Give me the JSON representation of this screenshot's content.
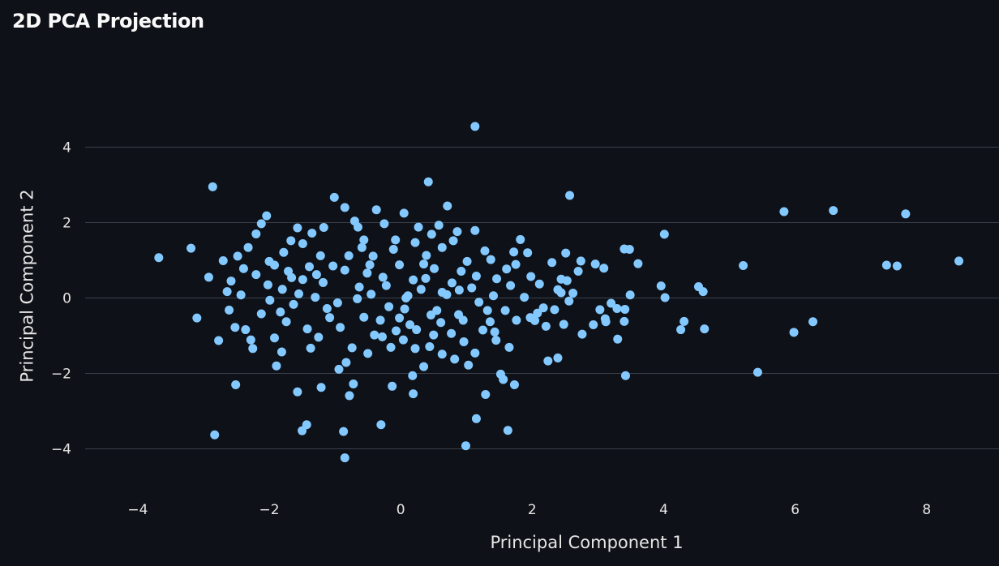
{
  "chart_data": {
    "type": "scatter",
    "title": "2D PCA Projection",
    "xlabel": "Principal Component 1",
    "ylabel": "Principal Component 2",
    "xlim": [
      -4.8,
      9.1
    ],
    "ylim": [
      -5.0,
      5.0
    ],
    "xticks": [
      -4,
      -2,
      0,
      2,
      4,
      6,
      8
    ],
    "yticks": [
      -4,
      -2,
      0,
      2,
      4
    ],
    "xtick_labels": [
      "−4",
      "−2",
      "0",
      "2",
      "4",
      "6",
      "8"
    ],
    "ytick_labels": [
      "−4",
      "−2",
      "0",
      "2",
      "4"
    ],
    "grid": "horizontal",
    "marker_color": "#83c9ff",
    "points": [
      [
        1.13,
        4.55
      ],
      [
        0.42,
        3.08
      ],
      [
        -2.86,
        2.95
      ],
      [
        -1.01,
        2.67
      ],
      [
        2.57,
        2.72
      ],
      [
        5.83,
        2.29
      ],
      [
        6.58,
        2.32
      ],
      [
        7.68,
        2.23
      ],
      [
        4.01,
        1.69
      ],
      [
        -3.68,
        1.07
      ],
      [
        -3.19,
        1.32
      ],
      [
        7.39,
        0.87
      ],
      [
        7.55,
        0.85
      ],
      [
        8.49,
        0.98
      ],
      [
        5.21,
        0.86
      ],
      [
        3.61,
        0.91
      ],
      [
        3.4,
        1.3
      ],
      [
        3.48,
        1.29
      ],
      [
        3.96,
        0.32
      ],
      [
        4.02,
        0.01
      ],
      [
        4.53,
        0.3
      ],
      [
        4.6,
        0.17
      ],
      [
        3.49,
        0.08
      ],
      [
        4.31,
        -0.62
      ],
      [
        4.26,
        -0.84
      ],
      [
        4.62,
        -0.82
      ],
      [
        5.98,
        -0.91
      ],
      [
        6.27,
        -0.63
      ],
      [
        5.43,
        -1.97
      ],
      [
        3.3,
        -1.09
      ],
      [
        3.42,
        -2.06
      ],
      [
        2.39,
        -1.59
      ],
      [
        2.24,
        -1.67
      ],
      [
        -2.51,
        -2.3
      ],
      [
        -2.83,
        -3.63
      ],
      [
        -0.85,
        -4.24
      ],
      [
        -0.87,
        -3.54
      ],
      [
        0.99,
        -3.92
      ],
      [
        1.63,
        -3.51
      ],
      [
        -1.5,
        -3.52
      ],
      [
        -1.43,
        -3.36
      ],
      [
        -0.3,
        -3.36
      ],
      [
        1.15,
        -3.2
      ],
      [
        -0.78,
        -2.59
      ],
      [
        0.19,
        -2.54
      ],
      [
        1.29,
        -2.56
      ],
      [
        1.52,
        -2.02
      ],
      [
        1.56,
        -2.16
      ],
      [
        1.73,
        -2.3
      ],
      [
        -3.1,
        -0.53
      ],
      [
        -2.77,
        -1.13
      ],
      [
        -2.92,
        0.55
      ],
      [
        -0.72,
        -2.28
      ],
      [
        -0.13,
        -2.34
      ],
      [
        0.18,
        -2.06
      ],
      [
        -1.57,
        -2.49
      ],
      [
        -1.21,
        -2.37
      ],
      [
        2.74,
        0.98
      ],
      [
        2.62,
        0.13
      ],
      [
        2.96,
        0.9
      ],
      [
        3.09,
        0.79
      ],
      [
        2.51,
        1.19
      ],
      [
        2.56,
        -0.08
      ],
      [
        2.76,
        -0.96
      ],
      [
        2.93,
        -0.71
      ],
      [
        3.03,
        -0.31
      ],
      [
        3.11,
        -0.55
      ],
      [
        3.12,
        -0.63
      ],
      [
        3.2,
        -0.14
      ],
      [
        3.29,
        -0.28
      ],
      [
        3.41,
        -0.3
      ],
      [
        3.4,
        -0.62
      ],
      [
        1.82,
        1.55
      ],
      [
        1.93,
        1.2
      ],
      [
        1.98,
        0.57
      ],
      [
        2.11,
        0.37
      ],
      [
        2.3,
        0.94
      ],
      [
        2.44,
        0.5
      ],
      [
        2.48,
        -0.7
      ],
      [
        2.7,
        0.71
      ],
      [
        1.13,
        1.79
      ],
      [
        1.37,
        1.02
      ],
      [
        1.46,
        0.51
      ],
      [
        1.61,
        0.77
      ],
      [
        1.75,
        0.89
      ],
      [
        1.76,
        -0.59
      ],
      [
        1.97,
        -0.52
      ],
      [
        2.08,
        -0.4
      ],
      [
        2.21,
        -0.75
      ],
      [
        2.34,
        -0.31
      ],
      [
        2.39,
        0.22
      ],
      [
        2.53,
        0.46
      ],
      [
        0.71,
        2.44
      ],
      [
        0.58,
        1.93
      ],
      [
        0.47,
        1.69
      ],
      [
        0.63,
        1.34
      ],
      [
        0.8,
        1.52
      ],
      [
        0.92,
        0.71
      ],
      [
        0.63,
        0.15
      ],
      [
        0.55,
        -0.33
      ],
      [
        0.88,
        -0.44
      ],
      [
        0.77,
        -0.94
      ],
      [
        0.96,
        -1.16
      ],
      [
        1.13,
        -1.46
      ],
      [
        1.25,
        -0.85
      ],
      [
        1.32,
        -0.33
      ],
      [
        1.45,
        -1.12
      ],
      [
        1.65,
        -1.31
      ],
      [
        1.03,
        -1.78
      ],
      [
        0.82,
        -1.62
      ],
      [
        0.63,
        -1.49
      ],
      [
        0.05,
        2.25
      ],
      [
        -0.25,
        1.97
      ],
      [
        -0.08,
        1.54
      ],
      [
        0.22,
        1.47
      ],
      [
        0.35,
        0.9
      ],
      [
        0.19,
        0.48
      ],
      [
        0.08,
        0.0
      ],
      [
        -0.02,
        -0.53
      ],
      [
        0.24,
        -0.84
      ],
      [
        0.44,
        -1.29
      ],
      [
        0.35,
        -1.82
      ],
      [
        0.04,
        -1.11
      ],
      [
        -0.15,
        -1.31
      ],
      [
        -0.42,
        1.11
      ],
      [
        -0.56,
        1.54
      ],
      [
        -0.65,
        1.88
      ],
      [
        -0.7,
        2.04
      ],
      [
        -0.51,
        0.66
      ],
      [
        -0.45,
        0.1
      ],
      [
        -0.56,
        -0.51
      ],
      [
        -0.4,
        -0.98
      ],
      [
        -0.74,
        -1.32
      ],
      [
        -0.83,
        -1.71
      ],
      [
        -0.94,
        -1.89
      ],
      [
        -1.17,
        1.87
      ],
      [
        -1.35,
        1.72
      ],
      [
        -1.49,
        1.44
      ],
      [
        -1.22,
        1.12
      ],
      [
        -1.39,
        0.83
      ],
      [
        -1.18,
        0.41
      ],
      [
        -1.3,
        0.02
      ],
      [
        -1.08,
        -0.52
      ],
      [
        -1.25,
        -1.04
      ],
      [
        -1.37,
        -1.33
      ],
      [
        -1.67,
        1.52
      ],
      [
        -1.78,
        1.21
      ],
      [
        -1.92,
        0.87
      ],
      [
        -1.66,
        0.54
      ],
      [
        -1.8,
        0.23
      ],
      [
        -1.63,
        -0.17
      ],
      [
        -1.74,
        -0.63
      ],
      [
        -1.92,
        -1.06
      ],
      [
        -1.81,
        -1.43
      ],
      [
        -1.89,
        -1.8
      ],
      [
        -2.12,
        1.97
      ],
      [
        -2.04,
        2.18
      ],
      [
        -2.2,
        1.7
      ],
      [
        -2.32,
        1.34
      ],
      [
        -2.48,
        1.11
      ],
      [
        -2.39,
        0.78
      ],
      [
        -2.58,
        0.45
      ],
      [
        -2.43,
        0.08
      ],
      [
        -2.61,
        -0.32
      ],
      [
        -2.36,
        -0.84
      ],
      [
        -2.25,
        -1.34
      ],
      [
        -2.7,
        0.99
      ],
      [
        -2.64,
        0.17
      ],
      [
        -2.12,
        -0.42
      ],
      [
        -2.02,
        0.35
      ],
      [
        -0.02,
        0.88
      ],
      [
        -0.27,
        0.55
      ],
      [
        -0.18,
        -0.23
      ],
      [
        0.31,
        0.23
      ],
      [
        0.46,
        -0.45
      ],
      [
        0.78,
        0.4
      ],
      [
        1.08,
        0.27
      ],
      [
        1.19,
        -0.11
      ],
      [
        1.41,
        0.06
      ],
      [
        1.59,
        -0.33
      ],
      [
        1.88,
        0.02
      ],
      [
        2.17,
        -0.26
      ],
      [
        -0.85,
        0.74
      ],
      [
        -0.63,
        0.29
      ],
      [
        -0.96,
        -0.13
      ],
      [
        -1.49,
        0.49
      ],
      [
        -0.31,
        -0.59
      ],
      [
        0.14,
        -0.71
      ],
      [
        0.61,
        -0.65
      ],
      [
        1.01,
        0.97
      ],
      [
        0.39,
        1.13
      ],
      [
        -0.11,
        1.29
      ],
      [
        -0.79,
        1.12
      ],
      [
        -1.03,
        0.85
      ],
      [
        -1.55,
        0.11
      ],
      [
        -1.99,
        -0.06
      ],
      [
        -2.2,
        0.62
      ],
      [
        1.28,
        1.25
      ],
      [
        0.86,
        1.76
      ],
      [
        0.27,
        1.88
      ],
      [
        -0.37,
        2.34
      ],
      [
        -0.85,
        2.4
      ],
      [
        -1.57,
        1.86
      ],
      [
        -2.0,
        0.97
      ],
      [
        -2.52,
        -0.78
      ],
      [
        -1.42,
        -0.82
      ],
      [
        -0.5,
        -1.47
      ],
      [
        0.5,
        -0.98
      ],
      [
        1.43,
        -0.9
      ],
      [
        2.04,
        -0.6
      ],
      [
        0.11,
        0.06
      ],
      [
        -0.22,
        0.33
      ],
      [
        0.38,
        0.52
      ],
      [
        0.7,
        0.09
      ],
      [
        -0.66,
        -0.02
      ],
      [
        -1.12,
        -0.28
      ],
      [
        -0.28,
        -1.03
      ],
      [
        0.22,
        -1.34
      ],
      [
        0.95,
        -0.59
      ],
      [
        1.67,
        0.33
      ],
      [
        2.44,
        0.14
      ],
      [
        1.15,
        0.58
      ],
      [
        0.51,
        0.78
      ],
      [
        -0.47,
        0.88
      ],
      [
        -1.28,
        0.62
      ],
      [
        -1.83,
        -0.37
      ],
      [
        -2.28,
        -1.11
      ],
      [
        -0.92,
        -0.78
      ],
      [
        0.06,
        -0.29
      ],
      [
        0.89,
        0.21
      ],
      [
        1.72,
        1.22
      ],
      [
        -0.59,
        1.34
      ],
      [
        -1.71,
        0.71
      ],
      [
        -0.07,
        -0.87
      ],
      [
        1.36,
        -0.63
      ]
    ]
  }
}
